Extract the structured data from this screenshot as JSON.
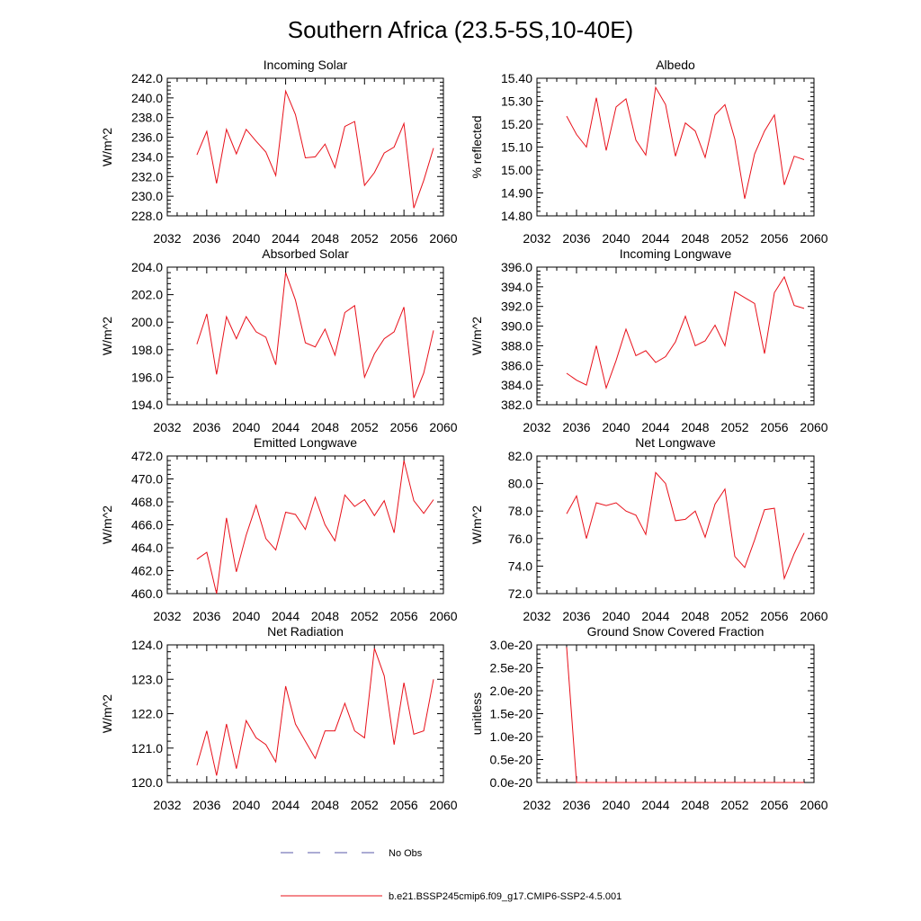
{
  "title": "Southern Africa (23.5-5S,10-40E)",
  "colors": {
    "model": "#e8101a",
    "obs": "#5a5aa8"
  },
  "legend": {
    "obs_label": "No Obs",
    "model_label": "b.e21.BSSP245cmip6.f09_g17.CMIP6-SSP2-4.5.001"
  },
  "chart_data": [
    {
      "type": "line",
      "title": "Incoming Solar",
      "ylabel": "W/m^2",
      "xlim": [
        2032,
        2060
      ],
      "xticks": [
        "2032",
        "2036",
        "2040",
        "2044",
        "2048",
        "2052",
        "2056",
        "2060"
      ],
      "ylim": [
        228,
        242
      ],
      "yticks": [
        "228.0",
        "230.0",
        "232.0",
        "234.0",
        "236.0",
        "238.0",
        "240.0",
        "242.0"
      ],
      "x": [
        2035,
        2036,
        2037,
        2038,
        2039,
        2040,
        2041,
        2042,
        2043,
        2044,
        2045,
        2046,
        2047,
        2048,
        2049,
        2050,
        2051,
        2052,
        2053,
        2054,
        2055,
        2056,
        2057,
        2058,
        2059
      ],
      "values": [
        234.2,
        236.6,
        231.3,
        236.8,
        234.3,
        236.8,
        235.6,
        234.5,
        232.1,
        240.7,
        238.3,
        233.9,
        234.0,
        235.3,
        232.9,
        237.1,
        237.6,
        231.1,
        232.4,
        234.4,
        235.0,
        237.4,
        228.8,
        231.6,
        234.9
      ]
    },
    {
      "type": "line",
      "title": "Albedo",
      "ylabel": "% reflected",
      "xlim": [
        2032,
        2060
      ],
      "xticks": [
        "2032",
        "2036",
        "2040",
        "2044",
        "2048",
        "2052",
        "2056",
        "2060"
      ],
      "ylim": [
        14.8,
        15.4
      ],
      "yticks": [
        "14.80",
        "14.90",
        "15.00",
        "15.10",
        "15.20",
        "15.30",
        "15.40"
      ],
      "x": [
        2035,
        2036,
        2037,
        2038,
        2039,
        2040,
        2041,
        2042,
        2043,
        2044,
        2045,
        2046,
        2047,
        2048,
        2049,
        2050,
        2051,
        2052,
        2053,
        2054,
        2055,
        2056,
        2057,
        2058,
        2059
      ],
      "values": [
        15.235,
        15.155,
        15.1,
        15.315,
        15.085,
        15.275,
        15.31,
        15.13,
        15.065,
        15.36,
        15.285,
        15.06,
        15.205,
        15.17,
        15.055,
        15.24,
        15.285,
        15.135,
        14.875,
        15.07,
        15.17,
        15.24,
        14.935,
        15.06,
        15.045
      ]
    },
    {
      "type": "line",
      "title": "Absorbed Solar",
      "ylabel": "W/m^2",
      "xlim": [
        2032,
        2060
      ],
      "xticks": [
        "2032",
        "2036",
        "2040",
        "2044",
        "2048",
        "2052",
        "2056",
        "2060"
      ],
      "ylim": [
        194,
        204
      ],
      "yticks": [
        "194.0",
        "196.0",
        "198.0",
        "200.0",
        "202.0",
        "204.0"
      ],
      "x": [
        2035,
        2036,
        2037,
        2038,
        2039,
        2040,
        2041,
        2042,
        2043,
        2044,
        2045,
        2046,
        2047,
        2048,
        2049,
        2050,
        2051,
        2052,
        2053,
        2054,
        2055,
        2056,
        2057,
        2058,
        2059
      ],
      "values": [
        198.4,
        200.6,
        196.2,
        200.4,
        198.8,
        200.4,
        199.3,
        198.9,
        196.9,
        203.6,
        201.6,
        198.5,
        198.2,
        199.5,
        197.6,
        200.7,
        201.2,
        196.0,
        197.7,
        198.8,
        199.3,
        201.1,
        194.5,
        196.3,
        199.4
      ]
    },
    {
      "type": "line",
      "title": "Incoming Longwave",
      "ylabel": "W/m^2",
      "xlim": [
        2032,
        2060
      ],
      "xticks": [
        "2032",
        "2036",
        "2040",
        "2044",
        "2048",
        "2052",
        "2056",
        "2060"
      ],
      "ylim": [
        382,
        396
      ],
      "yticks": [
        "382.0",
        "384.0",
        "386.0",
        "388.0",
        "390.0",
        "392.0",
        "394.0",
        "396.0"
      ],
      "x": [
        2035,
        2036,
        2037,
        2038,
        2039,
        2040,
        2041,
        2042,
        2043,
        2044,
        2045,
        2046,
        2047,
        2048,
        2049,
        2050,
        2051,
        2052,
        2053,
        2054,
        2055,
        2056,
        2057,
        2058,
        2059
      ],
      "values": [
        385.2,
        384.5,
        384.0,
        388.0,
        383.7,
        386.5,
        389.7,
        387.0,
        387.5,
        386.3,
        386.9,
        388.4,
        391.0,
        388.0,
        388.5,
        390.1,
        388.0,
        393.5,
        392.9,
        392.3,
        387.2,
        393.4,
        395.0,
        392.1,
        391.8
      ]
    },
    {
      "type": "line",
      "title": "Emitted Longwave",
      "ylabel": "W/m^2",
      "xlim": [
        2032,
        2060
      ],
      "xticks": [
        "2032",
        "2036",
        "2040",
        "2044",
        "2048",
        "2052",
        "2056",
        "2060"
      ],
      "ylim": [
        460,
        472
      ],
      "yticks": [
        "460.0",
        "462.0",
        "464.0",
        "466.0",
        "468.0",
        "470.0",
        "472.0"
      ],
      "x": [
        2035,
        2036,
        2037,
        2038,
        2039,
        2040,
        2041,
        2042,
        2043,
        2044,
        2045,
        2046,
        2047,
        2048,
        2049,
        2050,
        2051,
        2052,
        2053,
        2054,
        2055,
        2056,
        2057,
        2058,
        2059
      ],
      "values": [
        463.0,
        463.6,
        460.0,
        466.6,
        461.9,
        465.1,
        467.7,
        464.8,
        463.8,
        467.1,
        466.9,
        465.6,
        468.4,
        466.0,
        464.6,
        468.6,
        467.6,
        468.2,
        466.8,
        468.1,
        465.3,
        471.6,
        468.1,
        467.0,
        468.2
      ]
    },
    {
      "type": "line",
      "title": "Net Longwave",
      "ylabel": "W/m^2",
      "xlim": [
        2032,
        2060
      ],
      "xticks": [
        "2032",
        "2036",
        "2040",
        "2044",
        "2048",
        "2052",
        "2056",
        "2060"
      ],
      "ylim": [
        72,
        82
      ],
      "yticks": [
        "72.0",
        "74.0",
        "76.0",
        "78.0",
        "80.0",
        "82.0"
      ],
      "x": [
        2035,
        2036,
        2037,
        2038,
        2039,
        2040,
        2041,
        2042,
        2043,
        2044,
        2045,
        2046,
        2047,
        2048,
        2049,
        2050,
        2051,
        2052,
        2053,
        2054,
        2055,
        2056,
        2057,
        2058,
        2059
      ],
      "values": [
        77.8,
        79.1,
        76.0,
        78.6,
        78.4,
        78.6,
        78.0,
        77.7,
        76.3,
        80.8,
        80.0,
        77.3,
        77.4,
        78.0,
        76.1,
        78.5,
        79.6,
        74.7,
        73.9,
        75.9,
        78.1,
        78.2,
        73.1,
        74.9,
        76.4
      ]
    },
    {
      "type": "line",
      "title": "Net Radiation",
      "ylabel": "W/m^2",
      "xlim": [
        2032,
        2060
      ],
      "xticks": [
        "2032",
        "2036",
        "2040",
        "2044",
        "2048",
        "2052",
        "2056",
        "2060"
      ],
      "ylim": [
        120,
        124
      ],
      "yticks": [
        "120.0",
        "121.0",
        "122.0",
        "123.0",
        "124.0"
      ],
      "x": [
        2035,
        2036,
        2037,
        2038,
        2039,
        2040,
        2041,
        2042,
        2043,
        2044,
        2045,
        2046,
        2047,
        2048,
        2049,
        2050,
        2051,
        2052,
        2053,
        2054,
        2055,
        2056,
        2057,
        2058,
        2059
      ],
      "values": [
        120.5,
        121.5,
        120.2,
        121.7,
        120.4,
        121.8,
        121.3,
        121.1,
        120.6,
        122.8,
        121.7,
        121.2,
        120.7,
        121.5,
        121.5,
        122.3,
        121.5,
        121.3,
        123.9,
        123.1,
        121.1,
        122.9,
        121.4,
        121.5,
        123.0
      ]
    },
    {
      "type": "line",
      "title": "Ground Snow Covered Fraction",
      "ylabel": "unitless",
      "xlim": [
        2032,
        2060
      ],
      "xticks": [
        "2032",
        "2036",
        "2040",
        "2044",
        "2048",
        "2052",
        "2056",
        "2060"
      ],
      "ylim": [
        0,
        3e-20
      ],
      "yticks": [
        "0.0e-20",
        "0.5e-20",
        "1.0e-20",
        "1.5e-20",
        "2.0e-20",
        "2.5e-20",
        "3.0e-20"
      ],
      "x": [
        2035,
        2036,
        2037,
        2038,
        2039,
        2040,
        2041,
        2042,
        2043,
        2044,
        2045,
        2046,
        2047,
        2048,
        2049,
        2050,
        2051,
        2052,
        2053,
        2054,
        2055,
        2056,
        2057,
        2058,
        2059
      ],
      "values": [
        2.95e-20,
        0,
        0,
        0,
        0,
        0,
        0,
        0,
        0,
        0,
        0,
        0,
        0,
        0,
        0,
        0,
        0,
        0,
        0,
        0,
        0,
        0,
        0,
        0,
        0
      ]
    }
  ]
}
